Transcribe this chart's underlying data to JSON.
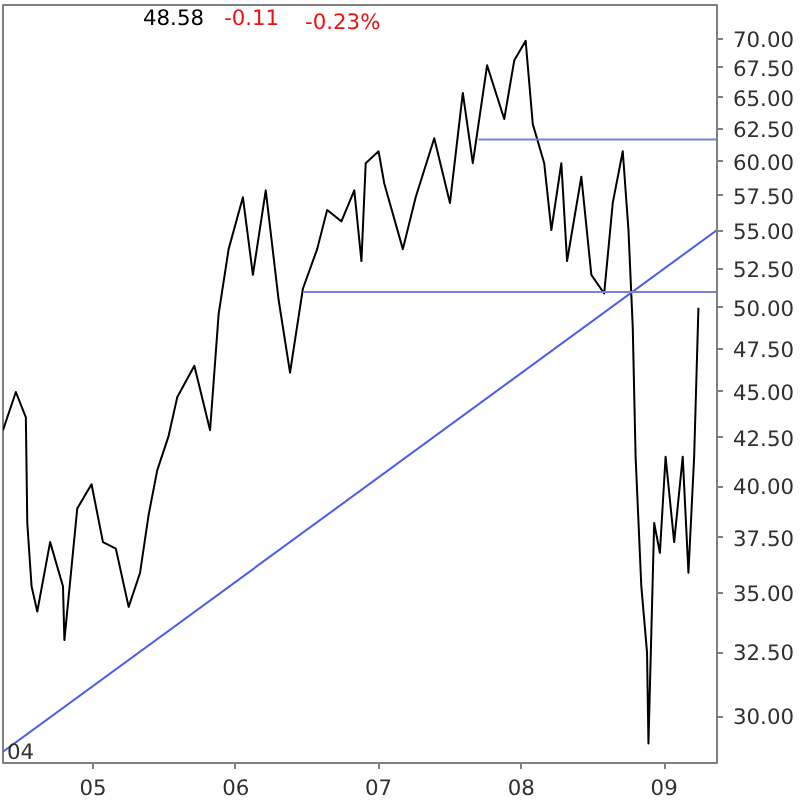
{
  "chart_data": {
    "type": "line",
    "log": "y",
    "grid": false,
    "marker": "none",
    "line_style": "solid",
    "annotations": [
      "48.58",
      "-0.11",
      "-0.23%",
      "04"
    ],
    "xlim": [
      2004.37,
      2009.37
    ],
    "ylim": [
      28.3,
      73
    ],
    "xticks": [
      {
        "value": 2005,
        "label": "05"
      },
      {
        "value": 2006,
        "label": "06"
      },
      {
        "value": 2007,
        "label": "07"
      },
      {
        "value": 2008,
        "label": "08"
      },
      {
        "value": 2009,
        "label": "09"
      }
    ],
    "yticks": [
      {
        "value": 30,
        "label": "30.00"
      },
      {
        "value": 32.5,
        "label": "32.50"
      },
      {
        "value": 35,
        "label": "35.00"
      },
      {
        "value": 37.5,
        "label": "37.50"
      },
      {
        "value": 40,
        "label": "40.00"
      },
      {
        "value": 42.5,
        "label": "42.50"
      },
      {
        "value": 45,
        "label": "45.00"
      },
      {
        "value": 47.5,
        "label": "47.50"
      },
      {
        "value": 50,
        "label": "50.00"
      },
      {
        "value": 52.5,
        "label": "52.50"
      },
      {
        "value": 55,
        "label": "55.00"
      },
      {
        "value": 57.5,
        "label": "57.50"
      },
      {
        "value": 60,
        "label": "60.00"
      },
      {
        "value": 62.5,
        "label": "62.50"
      },
      {
        "value": 65,
        "label": "65.00"
      },
      {
        "value": 67.5,
        "label": "67.50"
      },
      {
        "value": 70,
        "label": "70.00"
      }
    ],
    "series": [
      {
        "color": "#000000",
        "x": [
          2004.37,
          2004.46,
          2004.53,
          2004.54,
          2004.57,
          2004.61,
          2004.7,
          2004.79,
          2004.8,
          2004.89,
          2004.99,
          2005.07,
          2005.16,
          2005.25,
          2005.33,
          2005.39,
          2005.45,
          2005.53,
          2005.59,
          2005.71,
          2005.82,
          2005.88,
          2005.95,
          2006.05,
          2006.12,
          2006.21,
          2006.3,
          2006.38,
          2006.47,
          2006.57,
          2006.64,
          2006.74,
          2006.83,
          2006.88,
          2006.91,
          2007.0,
          2007.04,
          2007.17,
          2007.26,
          2007.39,
          2007.5,
          2007.59,
          2007.66,
          2007.76,
          2007.88,
          2007.95,
          2008.03,
          2008.08,
          2008.16,
          2008.21,
          2008.28,
          2008.32,
          2008.42,
          2008.49,
          2008.58,
          2008.64,
          2008.71,
          2008.75,
          2008.78,
          2008.8,
          2008.84,
          2008.88,
          2008.89,
          2008.93,
          2008.97,
          2009.01,
          2009.07,
          2009.13,
          2009.17,
          2009.21,
          2009.24
        ],
        "values": [
          42.9,
          45.0,
          43.6,
          38.2,
          35.3,
          34.2,
          37.3,
          35.3,
          33.0,
          38.9,
          40.1,
          37.3,
          37.0,
          34.4,
          35.9,
          38.6,
          40.8,
          42.6,
          44.7,
          46.5,
          42.9,
          49.6,
          53.8,
          57.4,
          52.1,
          57.9,
          50.5,
          46.1,
          51.2,
          53.8,
          56.5,
          55.7,
          57.9,
          53.0,
          59.9,
          60.8,
          58.4,
          53.8,
          57.4,
          61.8,
          57.0,
          65.4,
          59.9,
          67.7,
          63.3,
          68.1,
          69.8,
          62.9,
          59.9,
          55.1,
          59.9,
          53.0,
          58.9,
          52.1,
          50.9,
          57.0,
          60.8,
          55.1,
          48.8,
          41.5,
          35.3,
          32.5,
          29.0,
          38.2,
          36.8,
          41.5,
          37.3,
          41.5,
          35.9,
          41.5,
          50.0
        ]
      },
      {
        "type": "line",
        "color": "#4a5cf0",
        "x": [
          2004.37,
          2009.37
        ],
        "values": [
          28.7,
          55.1
        ]
      },
      {
        "type": "line",
        "color": "#7a80d8",
        "x": [
          2007.7,
          2009.37
        ],
        "values": [
          61.7,
          61.7
        ]
      },
      {
        "type": "line",
        "color": "#7a80d8",
        "x": [
          2006.47,
          2009.37
        ],
        "values": [
          51.0,
          51.0
        ]
      }
    ]
  }
}
